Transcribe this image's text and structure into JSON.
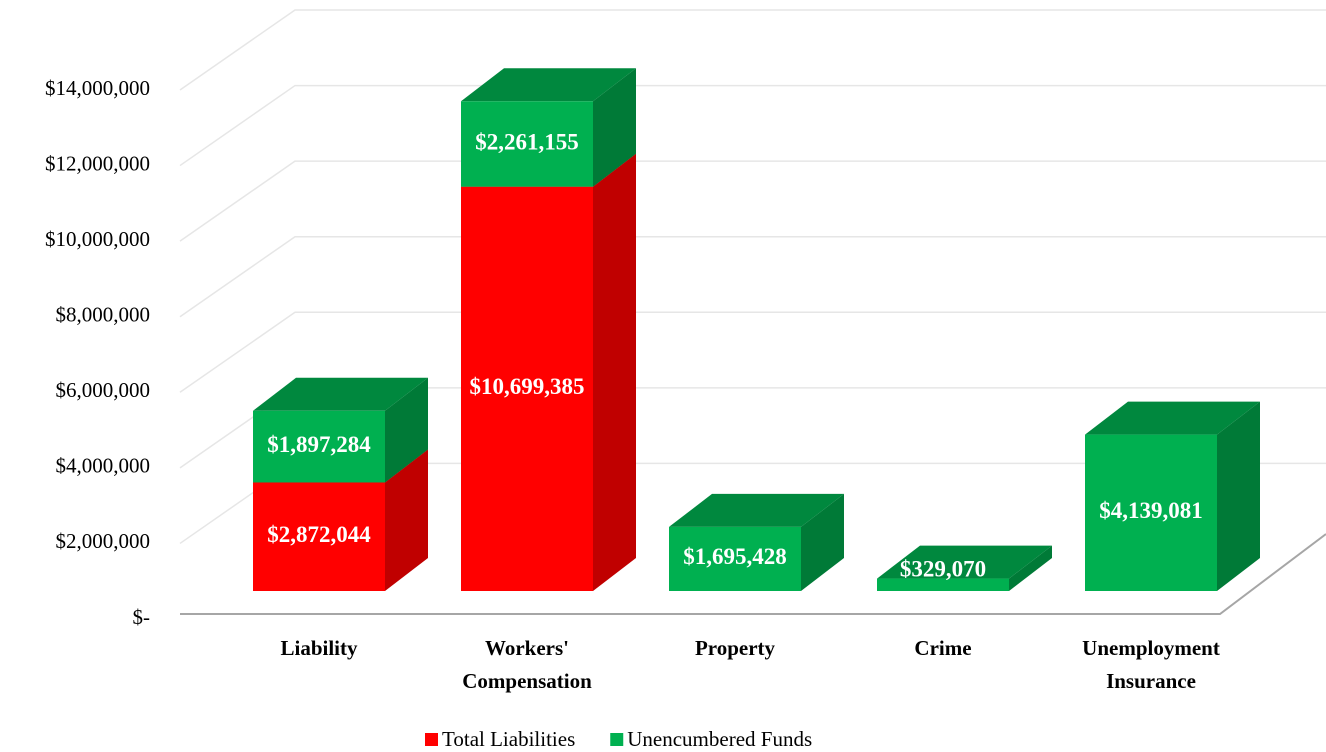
{
  "chart_data": {
    "type": "bar3d_stacked",
    "categories": [
      "Liability",
      "Workers' Compensation",
      "Property",
      "Crime",
      "Unemployment Insurance"
    ],
    "series": [
      {
        "name": "Total Liabilities",
        "color": "#ff0000",
        "side_color": "#c00000",
        "top_color": "#e00000",
        "values": [
          2872044,
          10699385,
          null,
          null,
          null
        ],
        "value_labels": [
          "$2,872,044",
          "$10,699,385",
          null,
          null,
          null
        ]
      },
      {
        "name": "Unencumbered Funds",
        "color": "#00b050",
        "side_color": "#007a37",
        "top_color": "#00883e",
        "values": [
          1897284,
          2261155,
          1695428,
          329070,
          4139081
        ],
        "value_labels": [
          "$1,897,284",
          "$2,261,155",
          "$1,695,428",
          "$329,070",
          "$4,139,081"
        ]
      }
    ],
    "ylim": [
      0,
      14000000
    ],
    "yticks": [
      {
        "value": 0,
        "label": "$-"
      },
      {
        "value": 2000000,
        "label": "$2,000,000"
      },
      {
        "value": 4000000,
        "label": "$4,000,000"
      },
      {
        "value": 6000000,
        "label": "$6,000,000"
      },
      {
        "value": 8000000,
        "label": "$8,000,000"
      },
      {
        "value": 10000000,
        "label": "$10,000,000"
      },
      {
        "value": 12000000,
        "label": "$12,000,000"
      },
      {
        "value": 14000000,
        "label": "$14,000,000"
      }
    ],
    "grid": true,
    "legend": "bottom"
  }
}
